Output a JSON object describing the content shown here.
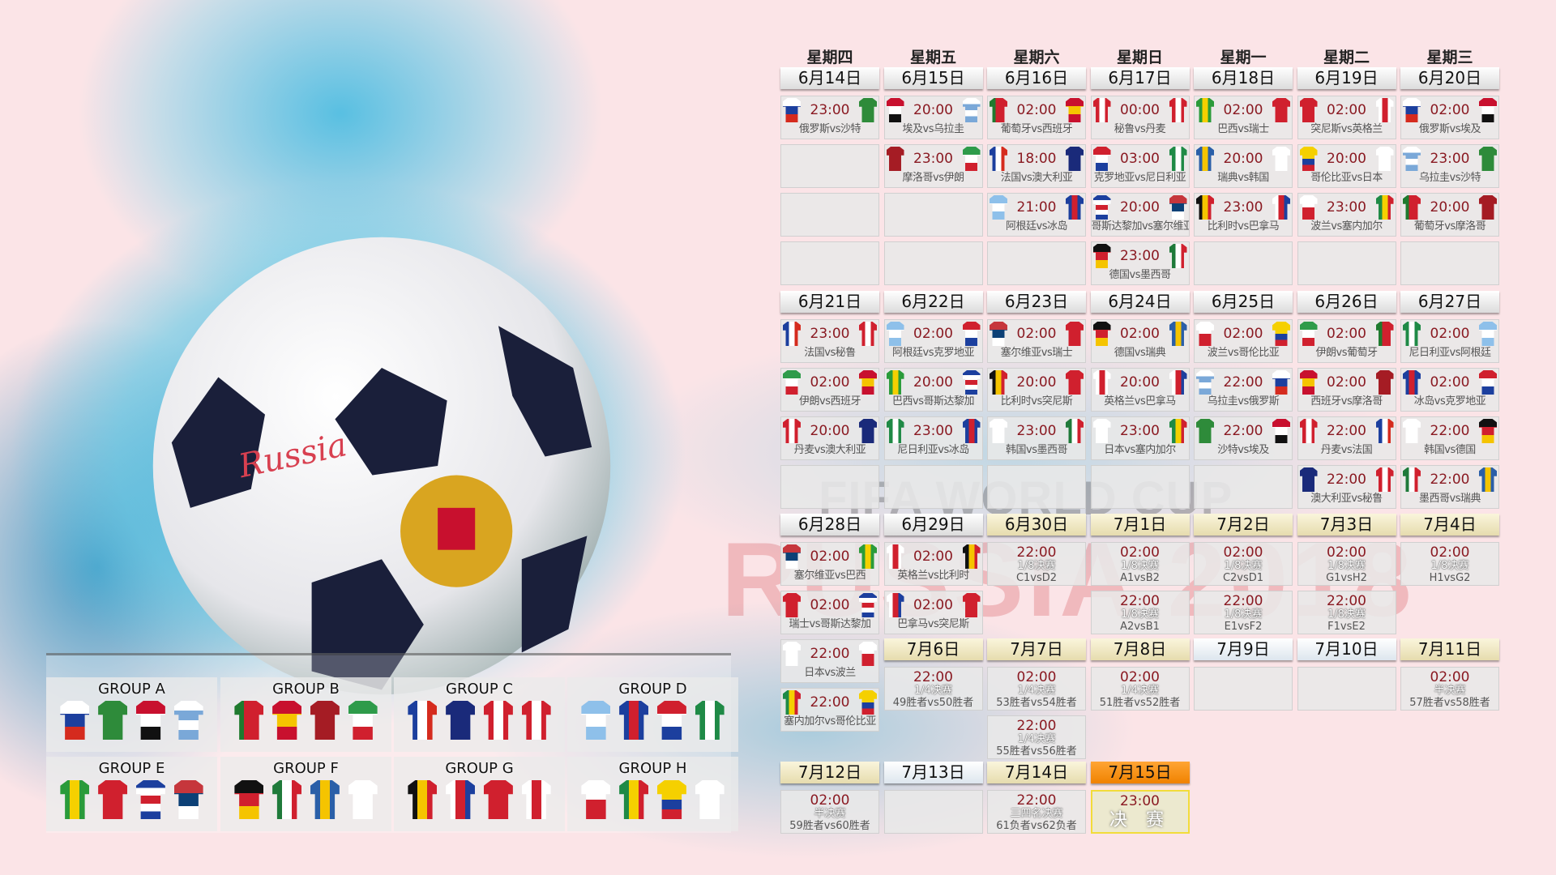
{
  "watermark": {
    "line1": "FIFA WORLD CUP",
    "line2": "RUSSIA 2018"
  },
  "ball_text": "Russia",
  "weekdays": [
    "星期四",
    "星期五",
    "星期六",
    "星期日",
    "星期一",
    "星期二",
    "星期三"
  ],
  "colors": {
    "time": "#8a1a22",
    "final_header": "#f08200",
    "background": "#fbe4e7"
  },
  "teams": {
    "俄罗斯": {
      "c": [
        "#ffffff",
        "#1c3f9e",
        "#d52b1e"
      ],
      "d": "h"
    },
    "沙特": {
      "c": [
        "#2e8b3a",
        "#2e8b3a"
      ],
      "d": "h"
    },
    "埃及": {
      "c": [
        "#c8102e",
        "#ffffff",
        "#111111"
      ],
      "d": "h"
    },
    "乌拉圭": {
      "c": [
        "#ffffff",
        "#7aa8d8",
        "#ffffff",
        "#7aa8d8"
      ],
      "d": "h"
    },
    "葡萄牙": {
      "c": [
        "#1f7a2e",
        "#d0202e",
        "#d0202e"
      ],
      "d": "v"
    },
    "西班牙": {
      "c": [
        "#c8102e",
        "#f5c400",
        "#c8102e"
      ],
      "d": "h"
    },
    "摩洛哥": {
      "c": [
        "#a51c24",
        "#a51c24"
      ],
      "d": "h"
    },
    "伊朗": {
      "c": [
        "#2e9b4a",
        "#ffffff",
        "#d0202e"
      ],
      "d": "h"
    },
    "法国": {
      "c": [
        "#1c3f9e",
        "#ffffff",
        "#d52b1e"
      ],
      "d": "v"
    },
    "澳大利亚": {
      "c": [
        "#1a2a7a",
        "#1a2a7a"
      ],
      "d": "h"
    },
    "秘鲁": {
      "c": [
        "#d0202e",
        "#ffffff",
        "#d0202e"
      ],
      "d": "v"
    },
    "丹麦": {
      "c": [
        "#d0202e",
        "#ffffff",
        "#d0202e"
      ],
      "d": "v"
    },
    "阿根廷": {
      "c": [
        "#8ec0ea",
        "#ffffff",
        "#8ec0ea"
      ],
      "d": "h"
    },
    "冰岛": {
      "c": [
        "#1c3f9e",
        "#d0202e",
        "#1c3f9e"
      ],
      "d": "v"
    },
    "克罗地亚": {
      "c": [
        "#d0202e",
        "#ffffff",
        "#1c3f9e"
      ],
      "d": "h"
    },
    "尼日利亚": {
      "c": [
        "#1f8a46",
        "#ffffff",
        "#1f8a46"
      ],
      "d": "v"
    },
    "巴西": {
      "c": [
        "#2a9b3a",
        "#f5d000",
        "#2a9b3a"
      ],
      "d": "v"
    },
    "瑞士": {
      "c": [
        "#d0202e",
        "#d0202e"
      ],
      "d": "h"
    },
    "哥斯达黎加": {
      "c": [
        "#1c3f9e",
        "#ffffff",
        "#d0202e",
        "#ffffff",
        "#1c3f9e"
      ],
      "d": "h"
    },
    "塞尔维亚": {
      "c": [
        "#c6363c",
        "#0c4076",
        "#ffffff"
      ],
      "d": "h"
    },
    "德国": {
      "c": [
        "#111111",
        "#d0202e",
        "#f5c400"
      ],
      "d": "h"
    },
    "墨西哥": {
      "c": [
        "#1f7a3a",
        "#ffffff",
        "#d0202e"
      ],
      "d": "v"
    },
    "瑞典": {
      "c": [
        "#2a5fa8",
        "#f5c400",
        "#2a5fa8"
      ],
      "d": "v"
    },
    "韩国": {
      "c": [
        "#ffffff",
        "#ffffff"
      ],
      "d": "h"
    },
    "比利时": {
      "c": [
        "#111111",
        "#f5c400",
        "#d0202e"
      ],
      "d": "v"
    },
    "巴拿马": {
      "c": [
        "#ffffff",
        "#d0202e",
        "#1c3f9e"
      ],
      "d": "v"
    },
    "突尼斯": {
      "c": [
        "#d0202e",
        "#d0202e"
      ],
      "d": "h"
    },
    "英格兰": {
      "c": [
        "#ffffff",
        "#d0202e",
        "#ffffff"
      ],
      "d": "v"
    },
    "波兰": {
      "c": [
        "#ffffff",
        "#d0202e"
      ],
      "d": "h"
    },
    "塞内加尔": {
      "c": [
        "#1f8a46",
        "#f5d000",
        "#d0202e"
      ],
      "d": "v"
    },
    "哥伦比亚": {
      "c": [
        "#f5d000",
        "#f5d000",
        "#1c3f9e",
        "#d0202e"
      ],
      "d": "h"
    },
    "日本": {
      "c": [
        "#ffffff",
        "#ffffff"
      ],
      "d": "h"
    }
  },
  "schedule": [
    {
      "days": [
        {
          "date": "6月14日",
          "matches": [
            {
              "time": "23:00",
              "label": "俄罗斯vs沙特"
            }
          ]
        },
        {
          "date": "6月15日",
          "matches": [
            {
              "time": "20:00",
              "label": "埃及vs乌拉圭"
            },
            {
              "time": "23:00",
              "label": "摩洛哥vs伊朗"
            }
          ]
        },
        {
          "date": "6月16日",
          "matches": [
            {
              "time": "02:00",
              "label": "葡萄牙vs西班牙"
            },
            {
              "time": "18:00",
              "label": "法国vs澳大利亚"
            },
            {
              "time": "21:00",
              "label": "阿根廷vs冰岛"
            }
          ]
        },
        {
          "date": "6月17日",
          "matches": [
            {
              "time": "00:00",
              "label": "秘鲁vs丹麦"
            },
            {
              "time": "03:00",
              "label": "克罗地亚vs尼日利亚"
            },
            {
              "time": "20:00",
              "label": "哥斯达黎加vs塞尔维亚"
            },
            {
              "time": "23:00",
              "label": "德国vs墨西哥"
            }
          ]
        },
        {
          "date": "6月18日",
          "matches": [
            {
              "time": "02:00",
              "label": "巴西vs瑞士"
            },
            {
              "time": "20:00",
              "label": "瑞典vs韩国"
            },
            {
              "time": "23:00",
              "label": "比利时vs巴拿马"
            }
          ]
        },
        {
          "date": "6月19日",
          "matches": [
            {
              "time": "02:00",
              "label": "突尼斯vs英格兰"
            },
            {
              "time": "20:00",
              "label": "哥伦比亚vs日本"
            },
            {
              "time": "23:00",
              "label": "波兰vs塞内加尔"
            }
          ]
        },
        {
          "date": "6月20日",
          "matches": [
            {
              "time": "02:00",
              "label": "俄罗斯vs埃及"
            },
            {
              "time": "23:00",
              "label": "乌拉圭vs沙特"
            },
            {
              "time": "20:00",
              "label": "葡萄牙vs摩洛哥"
            }
          ]
        }
      ]
    },
    {
      "days": [
        {
          "date": "6月21日",
          "matches": [
            {
              "time": "23:00",
              "label": "法国vs秘鲁"
            },
            {
              "time": "02:00",
              "label": "伊朗vs西班牙"
            },
            {
              "time": "20:00",
              "label": "丹麦vs澳大利亚"
            }
          ]
        },
        {
          "date": "6月22日",
          "matches": [
            {
              "time": "02:00",
              "label": "阿根廷vs克罗地亚"
            },
            {
              "time": "20:00",
              "label": "巴西vs哥斯达黎加"
            },
            {
              "time": "23:00",
              "label": "尼日利亚vs冰岛"
            }
          ]
        },
        {
          "date": "6月23日",
          "matches": [
            {
              "time": "02:00",
              "label": "塞尔维亚vs瑞士"
            },
            {
              "time": "20:00",
              "label": "比利时vs突尼斯"
            },
            {
              "time": "23:00",
              "label": "韩国vs墨西哥"
            }
          ]
        },
        {
          "date": "6月24日",
          "matches": [
            {
              "time": "02:00",
              "label": "德国vs瑞典"
            },
            {
              "time": "20:00",
              "label": "英格兰vs巴拿马"
            },
            {
              "time": "23:00",
              "label": "日本vs塞内加尔"
            }
          ]
        },
        {
          "date": "6月25日",
          "matches": [
            {
              "time": "02:00",
              "label": "波兰vs哥伦比亚"
            },
            {
              "time": "22:00",
              "label": "乌拉圭vs俄罗斯"
            },
            {
              "time": "22:00",
              "label": "沙特vs埃及"
            }
          ]
        },
        {
          "date": "6月26日",
          "matches": [
            {
              "time": "02:00",
              "label": "伊朗vs葡萄牙"
            },
            {
              "time": "02:00",
              "label": "西班牙vs摩洛哥"
            },
            {
              "time": "22:00",
              "label": "丹麦vs法国"
            },
            {
              "time": "22:00",
              "label": "澳大利亚vs秘鲁"
            }
          ]
        },
        {
          "date": "6月27日",
          "matches": [
            {
              "time": "02:00",
              "label": "尼日利亚vs阿根廷"
            },
            {
              "time": "02:00",
              "label": "冰岛vs克罗地亚"
            },
            {
              "time": "22:00",
              "label": "韩国vs德国"
            },
            {
              "time": "22:00",
              "label": "墨西哥vs瑞典"
            }
          ]
        }
      ]
    },
    {
      "days": [
        {
          "date": "6月28日",
          "matches": [
            {
              "time": "02:00",
              "label": "塞尔维亚vs巴西"
            },
            {
              "time": "02:00",
              "label": "瑞士vs哥斯达黎加"
            },
            {
              "time": "22:00",
              "label": "日本vs波兰"
            },
            {
              "time": "22:00",
              "label": "塞内加尔vs哥伦比亚"
            }
          ]
        },
        {
          "date": "6月29日",
          "matches": [
            {
              "time": "02:00",
              "label": "英格兰vs比利时"
            },
            {
              "time": "02:00",
              "label": "巴拿马vs突尼斯"
            }
          ]
        },
        {
          "date": "6月30日",
          "ko": true,
          "matches": [
            {
              "time": "22:00",
              "stage": "1/8决赛",
              "pair": "C1vsD2"
            }
          ]
        },
        {
          "date": "7月1日",
          "ko": true,
          "matches": [
            {
              "time": "02:00",
              "stage": "1/8决赛",
              "pair": "A1vsB2"
            },
            {
              "time": "22:00",
              "stage": "1/8决赛",
              "pair": "A2vsB1"
            }
          ]
        },
        {
          "date": "7月2日",
          "ko": true,
          "matches": [
            {
              "time": "02:00",
              "stage": "1/8决赛",
              "pair": "C2vsD1"
            },
            {
              "time": "22:00",
              "stage": "1/8决赛",
              "pair": "E1vsF2"
            }
          ]
        },
        {
          "date": "7月3日",
          "ko": true,
          "matches": [
            {
              "time": "02:00",
              "stage": "1/8决赛",
              "pair": "G1vsH2"
            },
            {
              "time": "22:00",
              "stage": "1/8决赛",
              "pair": "F1vsE2"
            }
          ]
        },
        {
          "date": "7月4日",
          "ko": true,
          "matches": [
            {
              "time": "02:00",
              "stage": "1/8决赛",
              "pair": "H1vsG2"
            }
          ]
        }
      ]
    },
    {
      "days": [
        {
          "date": "7月6日",
          "ko": true,
          "matches": [
            {
              "time": "22:00",
              "stage": "1/4决赛",
              "pair": "49胜者vs50胜者"
            }
          ]
        },
        {
          "date": "7月7日",
          "ko": true,
          "matches": [
            {
              "time": "02:00",
              "stage": "1/4决赛",
              "pair": "53胜者vs54胜者"
            },
            {
              "time": "22:00",
              "stage": "1/4决赛",
              "pair": "55胜者vs56胜者"
            }
          ]
        },
        {
          "date": "7月8日",
          "ko": true,
          "matches": [
            {
              "time": "02:00",
              "stage": "1/4决赛",
              "pair": "51胜者vs52胜者"
            }
          ]
        },
        {
          "date": "7月9日",
          "ko": true,
          "matches": []
        },
        {
          "date": "7月10日",
          "ko": true,
          "matches": []
        },
        {
          "date": "7月11日",
          "ko": true,
          "matches": [
            {
              "time": "02:00",
              "stage": "半决赛",
              "pair": "57胜者vs58胜者"
            }
          ]
        }
      ]
    },
    {
      "days": [
        {
          "date": "7月12日",
          "ko": true,
          "matches": [
            {
              "time": "02:00",
              "stage": "半决赛",
              "pair": "59胜者vs60胜者"
            }
          ]
        },
        {
          "date": "7月13日",
          "ko": true,
          "matches": []
        },
        {
          "date": "7月14日",
          "ko": true,
          "matches": [
            {
              "time": "22:00",
              "stage": "三四名决赛",
              "pair": "61负者vs62负者"
            }
          ]
        },
        {
          "date": "7月15日",
          "ko": true,
          "final": true,
          "matches": [
            {
              "time": "23:00",
              "stage": "决 赛"
            }
          ]
        }
      ]
    }
  ],
  "groups": [
    {
      "name": "GROUP A",
      "teams": [
        "俄罗斯",
        "沙特",
        "埃及",
        "乌拉圭"
      ]
    },
    {
      "name": "GROUP B",
      "teams": [
        "葡萄牙",
        "西班牙",
        "摩洛哥",
        "伊朗"
      ]
    },
    {
      "name": "GROUP C",
      "teams": [
        "法国",
        "澳大利亚",
        "秘鲁",
        "丹麦"
      ]
    },
    {
      "name": "GROUP D",
      "teams": [
        "阿根廷",
        "冰岛",
        "克罗地亚",
        "尼日利亚"
      ]
    },
    {
      "name": "GROUP E",
      "teams": [
        "巴西",
        "瑞士",
        "哥斯达黎加",
        "塞尔维亚"
      ]
    },
    {
      "name": "GROUP F",
      "teams": [
        "德国",
        "墨西哥",
        "瑞典",
        "韩国"
      ]
    },
    {
      "name": "GROUP G",
      "teams": [
        "比利时",
        "巴拿马",
        "突尼斯",
        "英格兰"
      ]
    },
    {
      "name": "GROUP H",
      "teams": [
        "波兰",
        "塞内加尔",
        "哥伦比亚",
        "日本"
      ]
    }
  ]
}
